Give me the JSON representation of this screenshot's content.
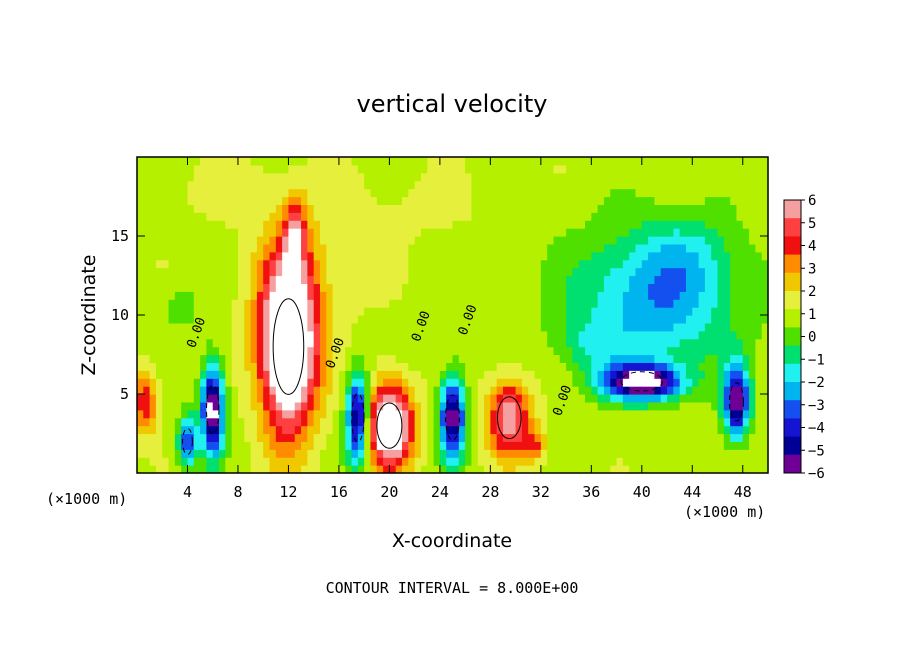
{
  "chart_data": {
    "type": "heatmap",
    "title": "vertical velocity",
    "xlabel": "X-coordinate",
    "ylabel": "Z-coordinate",
    "x_unit_label": "(×1000 m)",
    "footer": "CONTOUR INTERVAL = 8.000E+00",
    "xlim": [
      0,
      50
    ],
    "ylim": [
      0,
      20
    ],
    "x_ticks": [
      4,
      8,
      12,
      16,
      20,
      24,
      28,
      32,
      36,
      40,
      44,
      48
    ],
    "y_ticks": [
      5,
      10,
      15
    ],
    "colorbar": {
      "levels": [
        6,
        5,
        4,
        3,
        2,
        1,
        0,
        -1,
        -2,
        -3,
        -4,
        -5,
        -6
      ],
      "labels": [
        "6",
        "5",
        "4",
        "3",
        "2",
        "1",
        "0",
        "−1",
        "−2",
        "−3",
        "−4",
        "−5",
        "−6"
      ],
      "colors": [
        "#f4a0a0",
        "#ff4040",
        "#f01010",
        "#ff8c00",
        "#f0c800",
        "#e6f03c",
        "#b4f000",
        "#50e000",
        "#00e070",
        "#20f0f0",
        "#00b4f0",
        "#1450f0",
        "#1414d2",
        "#000096",
        "#6e0096"
      ]
    },
    "contour_label": "0.00",
    "features": [
      {
        "x": 12,
        "z": 8,
        "sx": 2.2,
        "sz": 5.5,
        "w": 10
      },
      {
        "x": 12.5,
        "z": 15,
        "sx": 0.9,
        "sz": 2.2,
        "w": 4
      },
      {
        "x": 20,
        "z": 3,
        "sx": 1.8,
        "sz": 2.6,
        "w": 9
      },
      {
        "x": 29.5,
        "z": 3.5,
        "sx": 1.7,
        "sz": 2.4,
        "w": 6
      },
      {
        "x": 31.5,
        "z": 1.8,
        "sx": 0.8,
        "sz": 1.0,
        "w": 3
      },
      {
        "x": 0.6,
        "z": 4.5,
        "sx": 1.0,
        "sz": 2.0,
        "w": 4
      },
      {
        "x": 6,
        "z": 4,
        "sx": 0.9,
        "sz": 2.8,
        "w": -9
      },
      {
        "x": 4,
        "z": 2,
        "sx": 0.7,
        "sz": 1.5,
        "w": -6
      },
      {
        "x": 17.5,
        "z": 3.5,
        "sx": 0.9,
        "sz": 2.8,
        "w": -8
      },
      {
        "x": 25,
        "z": 3.5,
        "sx": 1.0,
        "sz": 2.6,
        "w": -8
      },
      {
        "x": 40,
        "z": 5.8,
        "sx": 3.0,
        "sz": 1.1,
        "w": -9
      },
      {
        "x": 47.5,
        "z": 4.5,
        "sx": 1.0,
        "sz": 2.2,
        "w": -8
      },
      {
        "x": 41,
        "z": 11,
        "sx": 6.5,
        "sz": 4.5,
        "w": -4.2
      },
      {
        "x": 44,
        "z": 14,
        "sx": 3.5,
        "sz": 2.5,
        "w": -1.2
      },
      {
        "x": 36,
        "z": 8,
        "sx": 2.5,
        "sz": 1.5,
        "w": -1.5
      },
      {
        "x": 3.5,
        "z": 10.5,
        "sx": 1.5,
        "sz": 1.5,
        "w": -1.2
      },
      {
        "x": 13,
        "z": 12,
        "sx": 4.5,
        "sz": 4.5,
        "w": 1.2
      },
      {
        "x": 8,
        "z": 18,
        "sx": 6.0,
        "sz": 2.0,
        "w": 0.6
      },
      {
        "x": 22,
        "z": 17,
        "sx": 6.0,
        "sz": 2.5,
        "w": 0.5
      }
    ]
  }
}
